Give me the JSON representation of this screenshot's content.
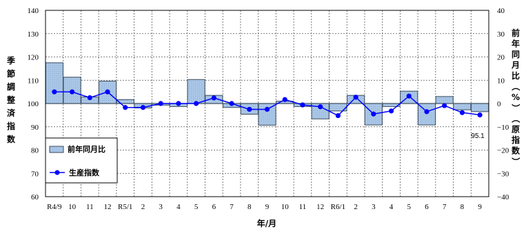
{
  "chart_data": {
    "type": "bar+line",
    "x_categories": [
      "R4/9",
      "10",
      "11",
      "12",
      "R5/1",
      "2",
      "3",
      "4",
      "5",
      "6",
      "7",
      "8",
      "9",
      "10",
      "11",
      "12",
      "R6/1",
      "2",
      "3",
      "4",
      "5",
      "6",
      "7",
      "8",
      "9"
    ],
    "series": [
      {
        "name": "前年同月比",
        "type": "bar",
        "axis": "right",
        "values": [
          17.5,
          11.3,
          2.8,
          9.6,
          1.7,
          -1.9,
          -0.7,
          -1.3,
          10.3,
          3.5,
          -1.7,
          -4.6,
          -9.3,
          1.0,
          -1.3,
          -6.6,
          -3.2,
          3.5,
          -9.2,
          -1.3,
          5.3,
          -9.2,
          3.0,
          -2.7,
          -3.5
        ]
      },
      {
        "name": "生産指数",
        "type": "line",
        "axis": "left",
        "values": [
          105.0,
          105.0,
          102.5,
          105.0,
          98.3,
          98.3,
          100.0,
          100.0,
          100.0,
          102.4,
          100.0,
          97.5,
          97.5,
          101.7,
          99.4,
          98.6,
          94.8,
          102.7,
          95.5,
          96.8,
          103.2,
          96.5,
          99.1,
          96.1,
          95.1
        ]
      }
    ],
    "y_left": {
      "label": "季節調整済指数",
      "ticks": [
        140,
        130,
        120,
        110,
        100,
        90,
        80,
        70,
        60
      ],
      "range": [
        60,
        140
      ]
    },
    "y_right": {
      "label": "前年同月比（%）（原指数）",
      "label_chars": [
        "前",
        "年",
        "同",
        "月",
        "比",
        "（",
        "%",
        "）",
        "（",
        "原",
        "指",
        "数",
        "）"
      ],
      "ticks": [
        40,
        30,
        20,
        10,
        0,
        -10,
        -20,
        -30,
        -40
      ],
      "range": [
        -40,
        40
      ]
    },
    "x_label": "年/月",
    "annotation": "95.1",
    "legend": [
      {
        "label": "前年同月比",
        "kind": "bar"
      },
      {
        "label": "生産指数",
        "kind": "line"
      }
    ],
    "legend_position": "bottom-left",
    "colors": {
      "bar_fill": "#a9c6e6",
      "bar_stroke": "#3a4a5a",
      "line": "#0000ff"
    },
    "grid": "dotted"
  }
}
